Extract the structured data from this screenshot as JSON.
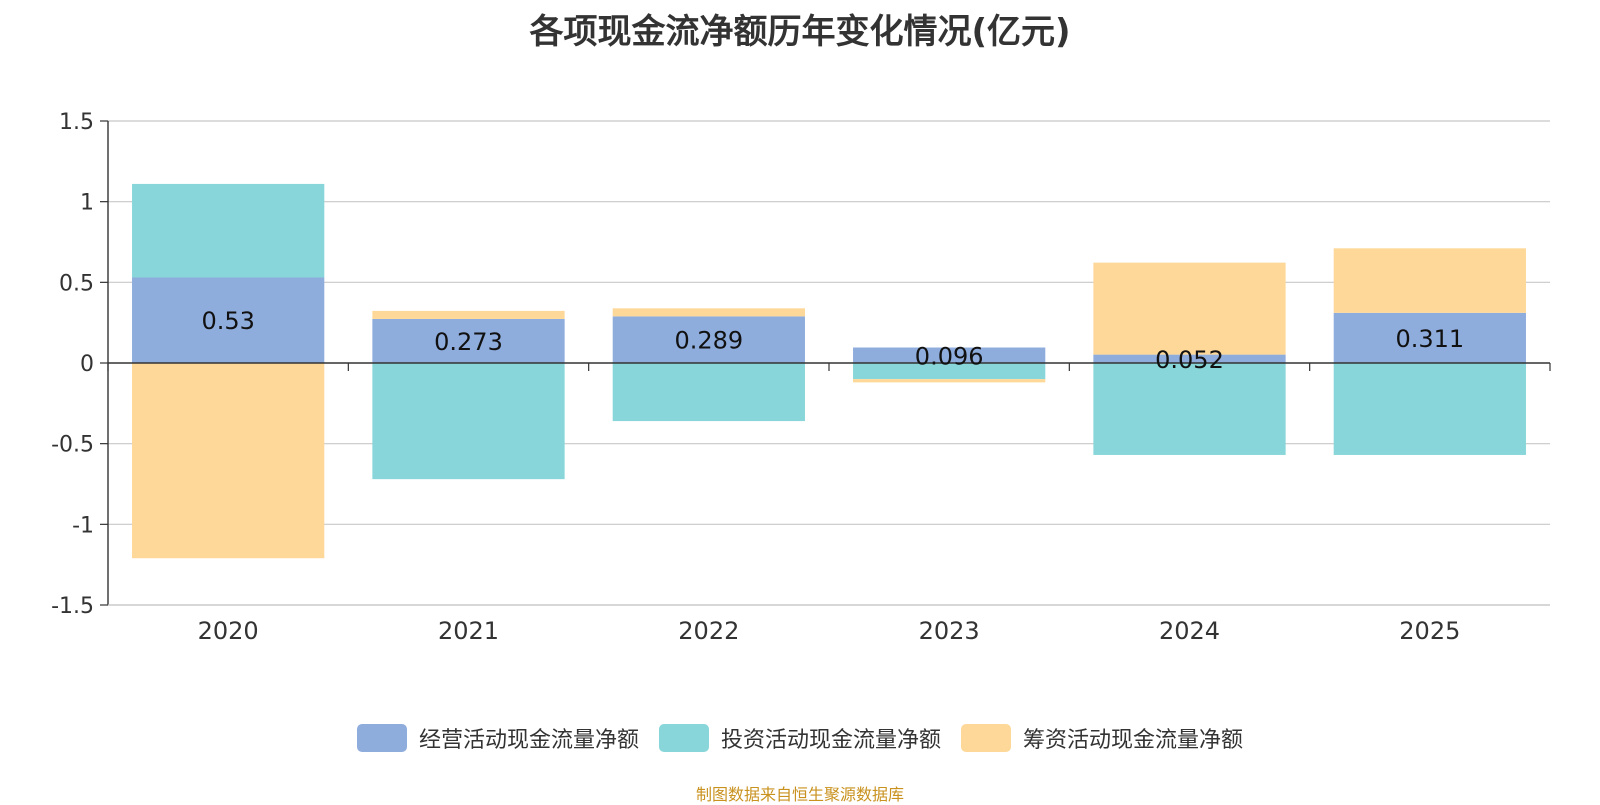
{
  "chart_data": {
    "type": "bar",
    "stacked": true,
    "title": "各项现金流净额历年变化情况(亿元)",
    "categories": [
      "2020",
      "2021",
      "2022",
      "2023",
      "2024",
      "2025"
    ],
    "ylim": [
      -1.5,
      1.5
    ],
    "yticks": [
      1.5,
      1,
      0.5,
      0,
      -0.5,
      -1,
      -1.5
    ],
    "ytick_labels": [
      "1.5",
      "1",
      "0.5",
      "0",
      "-0.5",
      "-1",
      "-1.5"
    ],
    "grid": true,
    "legend_position": "bottom",
    "series": [
      {
        "name": "经营活动现金流量净额",
        "color": "#8eacdc",
        "values": [
          0.53,
          0.273,
          0.289,
          0.096,
          0.052,
          0.311
        ],
        "labels": [
          "0.53",
          "0.273",
          "0.289",
          "0.096",
          "0.052",
          "0.311"
        ]
      },
      {
        "name": "投资活动现金流量净额",
        "color": "#88d6d9",
        "values": [
          0.58,
          -0.72,
          -0.36,
          -0.1,
          -0.57,
          -0.57
        ]
      },
      {
        "name": "筹资活动现金流量净额",
        "color": "#fed898",
        "values": [
          -1.21,
          0.05,
          0.05,
          -0.02,
          0.57,
          0.4
        ]
      }
    ]
  },
  "source_note": "制图数据来自恒生聚源数据库"
}
